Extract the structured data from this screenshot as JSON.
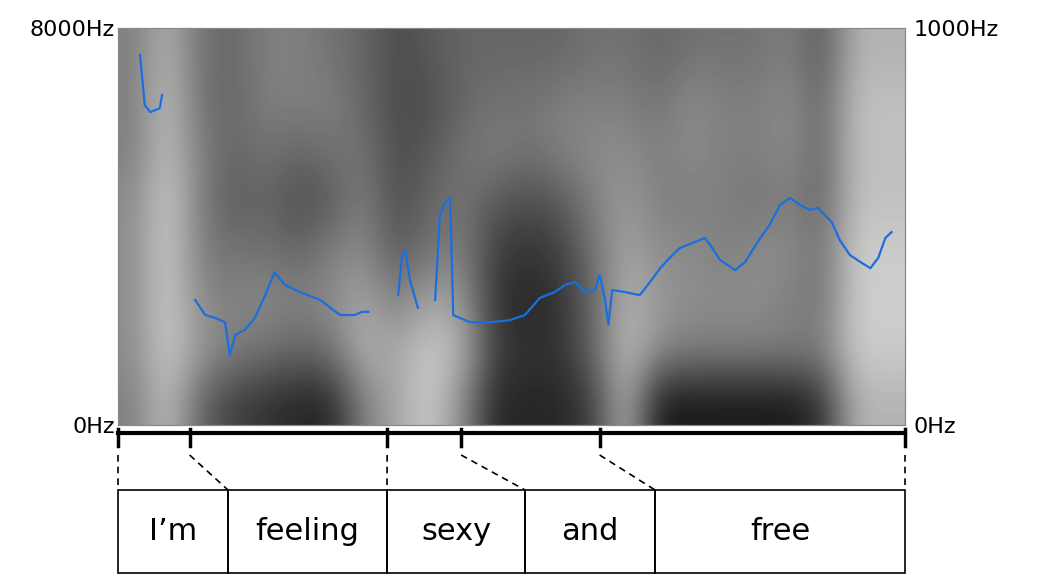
{
  "chart_data": {
    "type": "spectrogram",
    "xlim": [
      0,
      1
    ],
    "ylim": [
      0,
      8000
    ],
    "yticks": [
      {
        "value": 0,
        "label": "0Hz"
      },
      {
        "value": 8000,
        "label": "8000Hz"
      }
    ],
    "y2lim": [
      0,
      1000
    ],
    "y2ticks": [
      {
        "value": 0,
        "label": "0Hz"
      },
      {
        "value": 1000,
        "label": "1000Hz"
      }
    ],
    "tick_labels": "y",
    "cells": [
      [
        0.5,
        0.45,
        0.45,
        0.45,
        0.45,
        0.5,
        0.5,
        0.5
      ],
      [
        0.25,
        0.2,
        0.2,
        0.2,
        0.2,
        0.25,
        0.25,
        0.3
      ],
      [
        0.6,
        0.4,
        0.45,
        0.5,
        0.5,
        0.5,
        0.55,
        0.55
      ],
      [
        0.75,
        0.5,
        0.5,
        0.55,
        0.65,
        0.6,
        0.6,
        0.6
      ],
      [
        0.8,
        0.55,
        0.45,
        0.55,
        0.6,
        0.55,
        0.5,
        0.5
      ],
      [
        0.85,
        0.6,
        0.5,
        0.6,
        0.7,
        0.6,
        0.5,
        0.5
      ],
      [
        0.85,
        0.55,
        0.45,
        0.5,
        0.65,
        0.55,
        0.5,
        0.55
      ],
      [
        0.5,
        0.3,
        0.35,
        0.45,
        0.5,
        0.55,
        0.6,
        0.6
      ],
      [
        0.35,
        0.35,
        0.5,
        0.65,
        0.7,
        0.7,
        0.7,
        0.7
      ],
      [
        0.2,
        0.2,
        0.35,
        0.55,
        0.6,
        0.65,
        0.7,
        0.65
      ],
      [
        0.45,
        0.3,
        0.4,
        0.5,
        0.55,
        0.55,
        0.6,
        0.6
      ],
      [
        0.85,
        0.75,
        0.8,
        0.75,
        0.65,
        0.5,
        0.55,
        0.6
      ],
      [
        0.85,
        0.8,
        0.85,
        0.8,
        0.7,
        0.55,
        0.55,
        0.6
      ],
      [
        0.85,
        0.8,
        0.8,
        0.75,
        0.65,
        0.5,
        0.5,
        0.6
      ],
      [
        0.75,
        0.6,
        0.6,
        0.55,
        0.5,
        0.45,
        0.5,
        0.55
      ],
      [
        0.3,
        0.25,
        0.3,
        0.35,
        0.4,
        0.45,
        0.5,
        0.55
      ],
      [
        0.9,
        0.45,
        0.4,
        0.45,
        0.5,
        0.5,
        0.55,
        0.6
      ],
      [
        0.9,
        0.5,
        0.45,
        0.45,
        0.5,
        0.45,
        0.45,
        0.55
      ],
      [
        0.9,
        0.5,
        0.45,
        0.5,
        0.5,
        0.5,
        0.5,
        0.55
      ],
      [
        0.9,
        0.5,
        0.45,
        0.45,
        0.55,
        0.5,
        0.5,
        0.55
      ],
      [
        0.9,
        0.5,
        0.5,
        0.45,
        0.5,
        0.45,
        0.45,
        0.5
      ],
      [
        0.8,
        0.5,
        0.55,
        0.55,
        0.6,
        0.6,
        0.6,
        0.65
      ],
      [
        0.3,
        0.2,
        0.2,
        0.2,
        0.25,
        0.25,
        0.25,
        0.3
      ],
      [
        0.3,
        0.2,
        0.2,
        0.2,
        0.25,
        0.25,
        0.25,
        0.3
      ]
    ],
    "cell_range": [
      0,
      1
    ],
    "x": [
      0.028,
      0.034,
      0.041,
      0.047,
      0.053,
      0.056,
      0.076,
      0.098,
      0.111,
      0.123,
      0.136,
      0.142,
      0.149,
      0.161,
      0.174,
      0.187,
      0.199,
      0.212,
      0.231,
      0.257,
      0.282,
      0.301,
      0.31,
      0.318,
      0.337,
      0.356,
      0.361,
      0.365,
      0.371,
      0.381,
      0.391,
      0.403,
      0.409,
      0.416,
      0.422,
      0.426,
      0.447,
      0.473,
      0.498,
      0.517,
      0.536,
      0.555,
      0.568,
      0.581,
      0.593,
      0.606,
      0.612,
      0.619,
      0.623,
      0.628,
      0.644,
      0.663,
      0.676,
      0.689,
      0.701,
      0.714,
      0.733,
      0.746,
      0.755,
      0.765,
      0.784,
      0.797,
      0.816,
      0.828,
      0.841,
      0.854,
      0.867,
      0.879,
      0.889,
      0.898,
      0.907,
      0.917,
      0.93,
      0.943,
      0.956,
      0.966,
      0.975,
      0.983
    ],
    "series": [
      {
        "axis": "y2",
        "color": "#1a6fdf",
        "values": [
          932,
          806,
          788,
          793,
          798,
          831,
          null,
          315,
          277,
          270,
          259,
          176,
          227,
          239,
          270,
          327,
          385,
          353,
          335,
          315,
          277,
          277,
          285,
          285,
          null,
          327,
          428,
          441,
          365,
          295,
          null,
          315,
          529,
          562,
          572,
          277,
          259,
          259,
          264,
          277,
          320,
          335,
          353,
          360,
          335,
          340,
          378,
          315,
          252,
          340,
          335,
          327,
          360,
          395,
          421,
          446,
          461,
          471,
          446,
          416,
          390,
          411,
          471,
          504,
          554,
          572,
          554,
          542,
          547,
          529,
          511,
          466,
          428,
          411,
          395,
          421,
          471,
          486
        ]
      }
    ],
    "words": [
      {
        "text": "I’m",
        "start": 0,
        "end": 0.091
      },
      {
        "text": "feeling",
        "start": 0.091,
        "end": 0.342
      },
      {
        "text": "sexy",
        "start": 0.342,
        "end": 0.436
      },
      {
        "text": "and",
        "start": 0.436,
        "end": 0.612
      },
      {
        "text": "free",
        "start": 0.612,
        "end": 1
      }
    ]
  }
}
